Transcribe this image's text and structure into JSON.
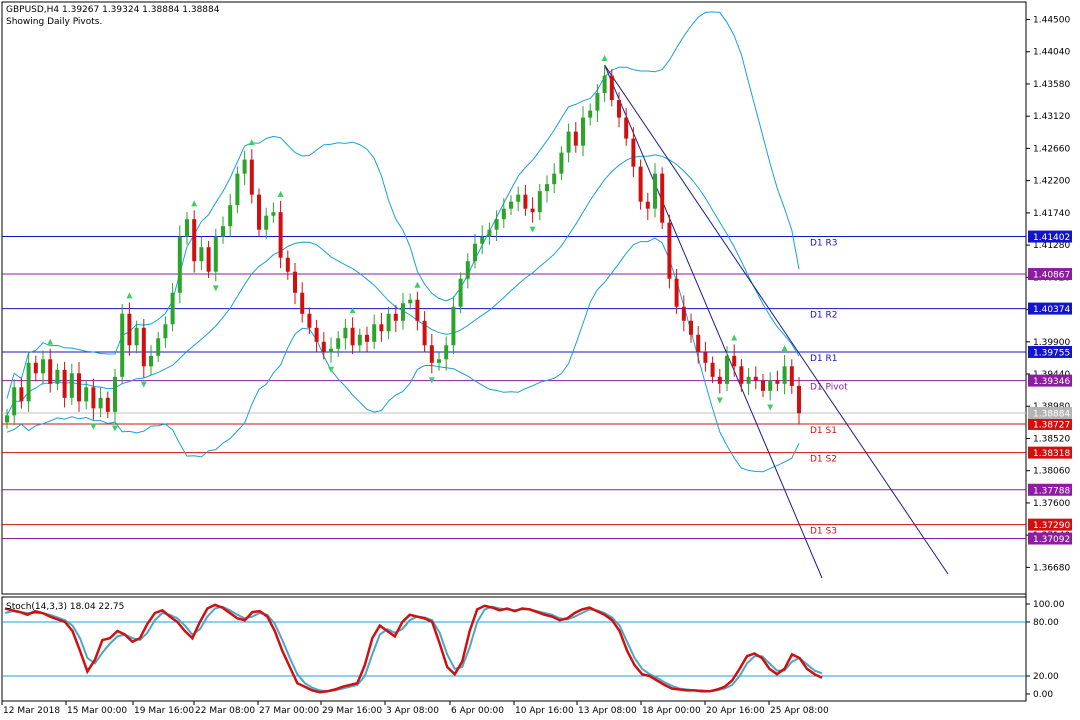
{
  "header": {
    "line1": "GBPUSD,H4  1.39267 1.39324 1.38884 1.38884",
    "line2": "Showing Daily Pivots."
  },
  "colors": {
    "bull": "#2aa52a",
    "bear": "#d01010",
    "bands": "#1aa0d8",
    "trend": "#1c1c8c",
    "stoch_main": "#d01010",
    "stoch_signal": "#4da6c8",
    "fractal": "#3ccf5f"
  },
  "chart_data": [
    {
      "type": "line",
      "name": "price",
      "price_axis_ticks": [
        "1.44500",
        "1.44040",
        "1.43580",
        "1.43120",
        "1.42660",
        "1.42200",
        "1.41740",
        "1.41280",
        "1.40820",
        "1.40360",
        "1.39900",
        "1.39440",
        "1.38980",
        "1.38520",
        "1.38060",
        "1.37600",
        "1.37140",
        "1.36680"
      ],
      "ylim": [
        1.363,
        1.4475
      ],
      "time_axis_ticks": [
        "12 Mar 2018",
        "15 Mar 00:00",
        "19 Mar 16:00",
        "22 Mar 08:00",
        "27 Mar 00:00",
        "29 Mar 16:00",
        "3 Apr 08:00",
        "6 Apr 00:00",
        "10 Apr 16:00",
        "13 Apr 08:00",
        "18 Apr 00:00",
        "20 Apr 16:00",
        "25 Apr 08:00"
      ],
      "pivots": [
        {
          "label": "D1  R3",
          "price": 1.41402,
          "badge": "1.41402",
          "color": "#1414c8"
        },
        {
          "label": "",
          "price": 1.40867,
          "badge": "1.40867",
          "color": "#8c1ca0"
        },
        {
          "label": "D1  R2",
          "price": 1.40374,
          "badge": "1.40374",
          "color": "#1414c8"
        },
        {
          "label": "D1  R1",
          "price": 1.39755,
          "badge": "1.39755",
          "color": "#1414c8"
        },
        {
          "label": "D1  Pivot",
          "price": 1.39346,
          "badge": "1.39346",
          "color": "#8c1ca0"
        },
        {
          "label": "D1  S1",
          "price": 1.38727,
          "badge": "1.38727",
          "color": "#d01010"
        },
        {
          "label": "D1  S2",
          "price": 1.38318,
          "badge": "1.38318",
          "color": "#d01010"
        },
        {
          "label": "",
          "price": 1.37788,
          "badge": "1.37788",
          "color": "#8c1ca0"
        },
        {
          "label": "D1  S3",
          "price": 1.3729,
          "badge": "1.37290",
          "color": "#d01010"
        },
        {
          "label": "",
          "price": 1.37092,
          "badge": "1.37092",
          "color": "#8c1ca0"
        }
      ],
      "last_price": {
        "price": 1.38884,
        "badge": "1.38884"
      },
      "closes": [
        1.3885,
        1.3925,
        1.3905,
        1.396,
        1.3945,
        1.3965,
        1.393,
        1.395,
        1.391,
        1.3945,
        1.3905,
        1.3925,
        1.3895,
        1.391,
        1.389,
        1.394,
        1.403,
        1.3985,
        1.401,
        1.3955,
        1.397,
        1.3995,
        1.4015,
        1.406,
        1.414,
        1.4165,
        1.4105,
        1.4125,
        1.409,
        1.414,
        1.4155,
        1.4185,
        1.423,
        1.425,
        1.42,
        1.415,
        1.417,
        1.4175,
        1.411,
        1.409,
        1.406,
        1.403,
        1.401,
        1.399,
        1.3975,
        1.398,
        1.3995,
        1.401,
        1.3985,
        1.4,
        1.399,
        1.4015,
        1.4005,
        1.403,
        1.402,
        1.4045,
        1.405,
        1.402,
        1.3985,
        1.396,
        1.3965,
        1.3985,
        1.404,
        1.408,
        1.4105,
        1.413,
        1.414,
        1.415,
        1.4165,
        1.418,
        1.419,
        1.42,
        1.418,
        1.4175,
        1.4205,
        1.4215,
        1.423,
        1.426,
        1.429,
        1.427,
        1.431,
        1.432,
        1.4345,
        1.437,
        1.4335,
        1.431,
        1.428,
        1.424,
        1.419,
        1.418,
        1.423,
        1.416,
        1.408,
        1.404,
        1.402,
        1.4,
        1.3975,
        1.396,
        1.394,
        1.393,
        1.397,
        1.3955,
        1.393,
        1.394,
        1.3935,
        1.392,
        1.3935,
        1.393,
        1.3955,
        1.3927,
        1.3888
      ],
      "stoch_label": "Stoch(14,3,3) 18.04 22.75",
      "stoch_axis_ticks": [
        "100.00",
        "80.00",
        "20.00",
        "0.00"
      ],
      "stoch_levels": [
        80,
        20
      ],
      "stoch_main": [
        95,
        93,
        91,
        88,
        92,
        90,
        86,
        83,
        80,
        70,
        48,
        25,
        38,
        60,
        62,
        70,
        66,
        58,
        62,
        78,
        90,
        93,
        86,
        80,
        70,
        62,
        80,
        95,
        99,
        96,
        90,
        84,
        82,
        91,
        92,
        86,
        70,
        48,
        30,
        12,
        8,
        4,
        2,
        3,
        5,
        8,
        10,
        12,
        32,
        62,
        76,
        70,
        64,
        80,
        88,
        86,
        84,
        80,
        56,
        30,
        22,
        36,
        70,
        94,
        98,
        96,
        93,
        95,
        92,
        95,
        94,
        91,
        88,
        86,
        82,
        84,
        90,
        94,
        96,
        92,
        88,
        82,
        70,
        48,
        32,
        22,
        20,
        15,
        10,
        6,
        5,
        4,
        4,
        3,
        3,
        5,
        8,
        15,
        28,
        42,
        45,
        40,
        28,
        22,
        28,
        44,
        40,
        28,
        22,
        18
      ],
      "stoch_signal": [
        90,
        92,
        91,
        90,
        90,
        90,
        88,
        85,
        82,
        76,
        62,
        40,
        34,
        46,
        56,
        64,
        66,
        62,
        60,
        68,
        82,
        90,
        88,
        84,
        76,
        66,
        72,
        86,
        95,
        97,
        93,
        88,
        84,
        86,
        90,
        88,
        78,
        60,
        40,
        22,
        12,
        7,
        4,
        3,
        4,
        6,
        8,
        10,
        20,
        44,
        66,
        72,
        68,
        72,
        82,
        86,
        85,
        82,
        68,
        44,
        28,
        30,
        52,
        80,
        94,
        97,
        95,
        94,
        93,
        94,
        94,
        92,
        90,
        88,
        84,
        83,
        86,
        90,
        94,
        93,
        90,
        85,
        76,
        58,
        40,
        28,
        22,
        18,
        13,
        9,
        6,
        5,
        4,
        4,
        3,
        4,
        6,
        10,
        20,
        34,
        42,
        42,
        34,
        26,
        26,
        36,
        40,
        33,
        26,
        23
      ]
    }
  ]
}
